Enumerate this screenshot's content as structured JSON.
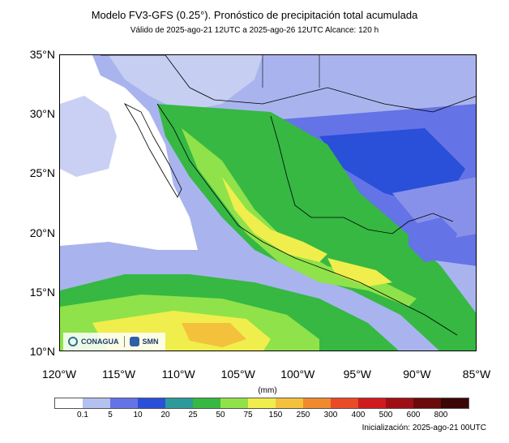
{
  "title": "Modelo FV3-GFS (0.25°). Pronóstico de precipitación total acumulada",
  "subtitle": "Válido de 2025-ago-21 12UTC a 2025-ago-26 12UTC    Alcance: 120 h",
  "lat_labels": [
    "35°N",
    "30°N",
    "25°N",
    "20°N",
    "15°N",
    "10°N"
  ],
  "lon_labels": [
    "120°W",
    "115°W",
    "110°W",
    "105°W",
    "100°W",
    "95°W",
    "90°W",
    "85°W"
  ],
  "colorbar": {
    "units": "(mm)",
    "levels": [
      "0.1",
      "5",
      "10",
      "20",
      "25",
      "50",
      "75",
      "150",
      "250",
      "300",
      "400",
      "500",
      "600",
      "800"
    ],
    "colors": [
      "#ffffff",
      "#b4c0f0",
      "#6473e6",
      "#2a4fd8",
      "#2c9a9a",
      "#36b843",
      "#8fe24a",
      "#f0ee4c",
      "#f4c13c",
      "#f08a2c",
      "#ea4a28",
      "#d01b1e",
      "#9e0f14",
      "#6a0a0a",
      "#3c0606"
    ]
  },
  "initialization": "Inicialización: 2025-ago-21 00UTC",
  "logos": {
    "conagua": "CONAGUA",
    "smn": "SMN"
  }
}
